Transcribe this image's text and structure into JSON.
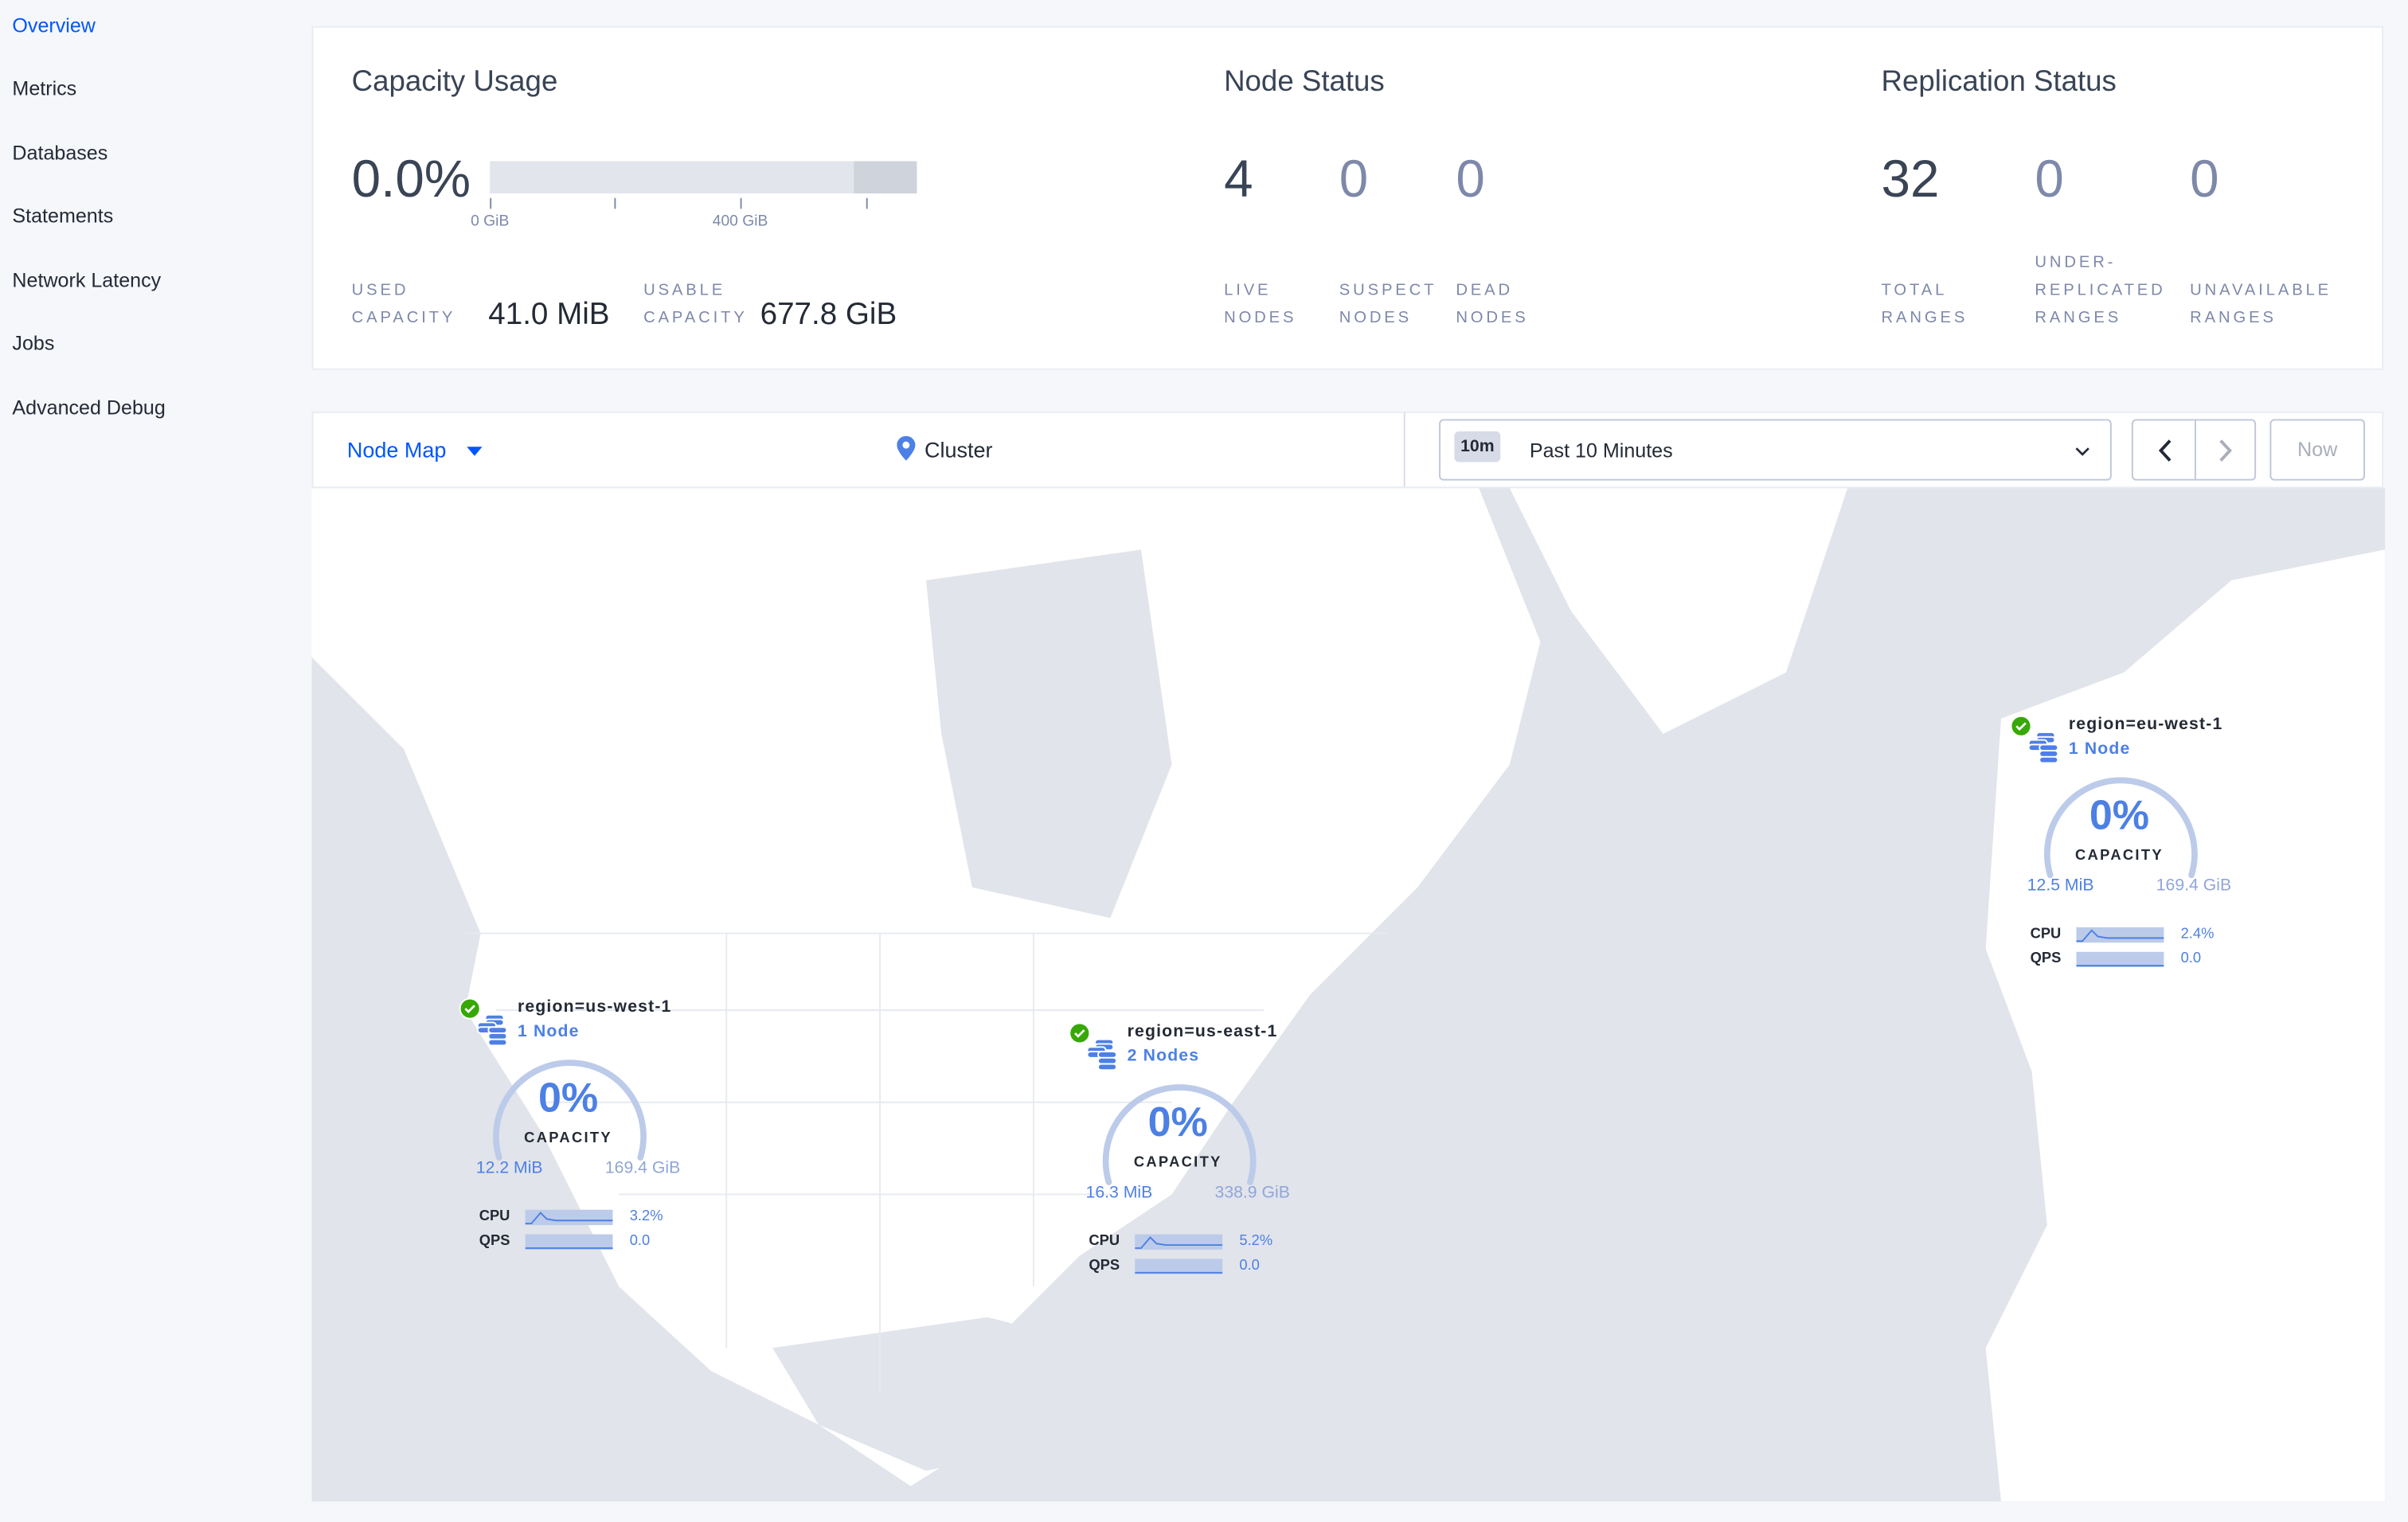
{
  "sidebar": {
    "items": [
      {
        "label": "Overview",
        "active": true
      },
      {
        "label": "Metrics"
      },
      {
        "label": "Databases"
      },
      {
        "label": "Statements"
      },
      {
        "label": "Network Latency"
      },
      {
        "label": "Jobs"
      },
      {
        "label": "Advanced Debug"
      }
    ]
  },
  "capacity": {
    "title": "Capacity Usage",
    "percent": "0.0%",
    "used_fraction": 0.0,
    "ticks": [
      "0 GiB",
      "400 GiB"
    ],
    "used_label": "USED CAPACITY",
    "used_value": "41.0 MiB",
    "usable_label": "USABLE CAPACITY",
    "usable_value": "677.8 GiB"
  },
  "node_status": {
    "title": "Node Status",
    "stats": [
      {
        "value": "4",
        "label": "LIVE NODES"
      },
      {
        "value": "0",
        "label": "SUSPECT NODES"
      },
      {
        "value": "0",
        "label": "DEAD NODES"
      }
    ]
  },
  "replication": {
    "title": "Replication Status",
    "stats": [
      {
        "value": "32",
        "label": "TOTAL RANGES"
      },
      {
        "value": "0",
        "label": "UNDER-REPLICATED RANGES"
      },
      {
        "value": "0",
        "label": "UNAVAILABLE RANGES"
      }
    ]
  },
  "toolbar": {
    "view_label": "Node Map",
    "cluster_label": "Cluster",
    "time_badge": "10m",
    "time_range": "Past 10 Minutes",
    "now_label": "Now"
  },
  "regions": [
    {
      "name": "region=us-west-1",
      "nodes": "1 Node",
      "percent": "0%",
      "capacity_label": "CAPACITY",
      "used": "12.2 MiB",
      "total": "169.4 GiB",
      "cpu_label": "CPU",
      "cpu": "3.2%",
      "qps_label": "QPS",
      "qps": "0.0",
      "status": "healthy"
    },
    {
      "name": "region=us-east-1",
      "nodes": "2 Nodes",
      "percent": "0%",
      "capacity_label": "CAPACITY",
      "used": "16.3 MiB",
      "total": "338.9 GiB",
      "cpu_label": "CPU",
      "cpu": "5.2%",
      "qps_label": "QPS",
      "qps": "0.0",
      "status": "healthy"
    },
    {
      "name": "region=eu-west-1",
      "nodes": "1 Node",
      "percent": "0%",
      "capacity_label": "CAPACITY",
      "used": "12.5 MiB",
      "total": "169.4 GiB",
      "cpu_label": "CPU",
      "cpu": "2.4%",
      "qps_label": "QPS",
      "qps": "0.0",
      "status": "healthy"
    }
  ],
  "colors": {
    "accent": "#0055ff",
    "region_blue": "#4d80e4",
    "healthy": "#37a806",
    "ocean": "#e1e4eb",
    "land": "#ffffff"
  }
}
